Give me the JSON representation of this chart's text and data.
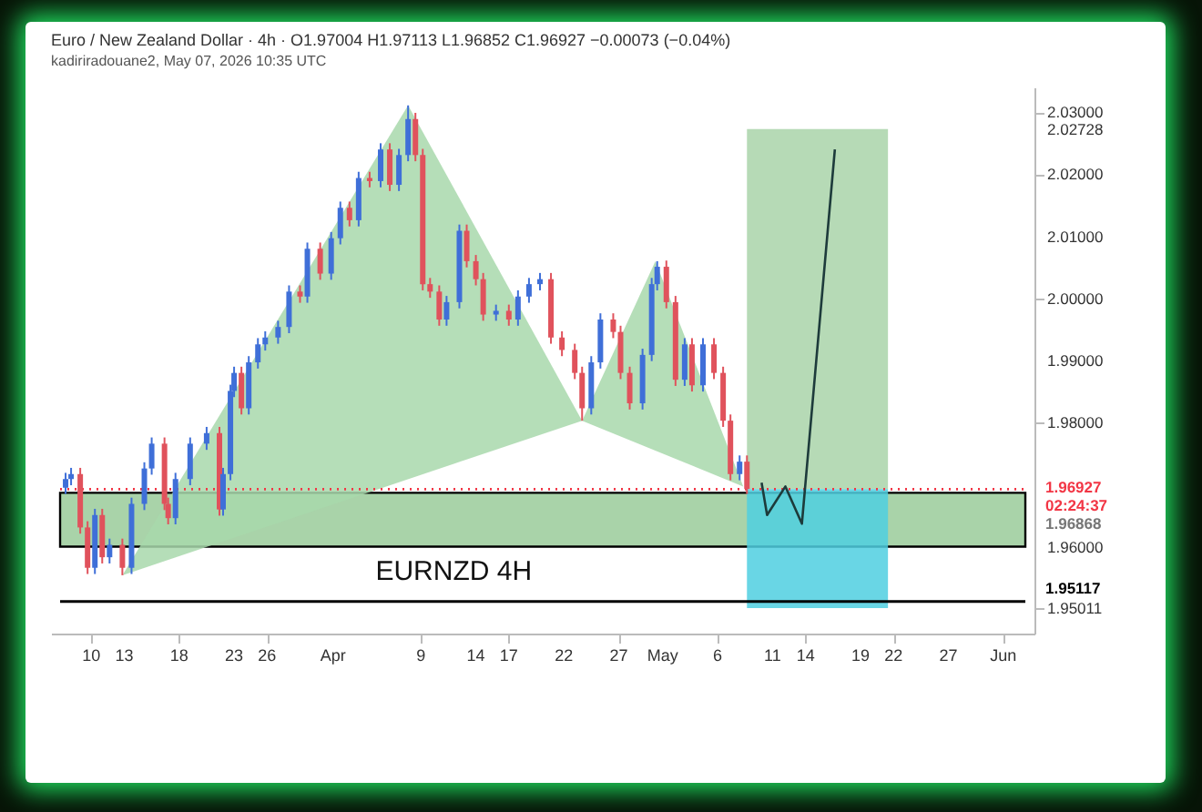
{
  "chart_data": {
    "type": "candlestick",
    "title": "Euro / New Zealand Dollar · 4h · O1.97004 H1.97113 L1.96852 C1.96927 −0.00073 (−0.04%)",
    "subtitle": "kadiriradouane2, May 07, 2026 10:35 UTC",
    "xlim": [
      "2026-03-07T04:00",
      "2026-06-03"
    ],
    "ylim": [
      1.946,
      2.034
    ],
    "xticks": [
      {
        "value": "2026-03-10",
        "label": "10"
      },
      {
        "value": "2026-03-13",
        "label": "13"
      },
      {
        "value": "2026-03-18",
        "label": "18"
      },
      {
        "value": "2026-03-23",
        "label": "23"
      },
      {
        "value": "2026-03-26",
        "label": "26"
      },
      {
        "value": "2026-04-01",
        "label": "Apr"
      },
      {
        "value": "2026-04-09",
        "label": "9"
      },
      {
        "value": "2026-04-14",
        "label": "14"
      },
      {
        "value": "2026-04-17",
        "label": "17"
      },
      {
        "value": "2026-04-22",
        "label": "22"
      },
      {
        "value": "2026-04-27",
        "label": "27"
      },
      {
        "value": "2026-05-01",
        "label": "May"
      },
      {
        "value": "2026-05-06",
        "label": "6"
      },
      {
        "value": "2026-05-11",
        "label": "11"
      },
      {
        "value": "2026-05-14",
        "label": "14"
      },
      {
        "value": "2026-05-19",
        "label": "19"
      },
      {
        "value": "2026-05-22",
        "label": "22"
      },
      {
        "value": "2026-05-27",
        "label": "27"
      },
      {
        "value": "2026-06-01",
        "label": "Jun"
      }
    ],
    "yticks": [
      {
        "value": 1.95011,
        "label": "1.95011"
      },
      {
        "value": 1.96,
        "label": "1.96000"
      },
      {
        "value": 1.98,
        "label": "1.98000"
      },
      {
        "value": 1.99,
        "label": "1.99000"
      },
      {
        "value": 2.0,
        "label": "2.00000"
      },
      {
        "value": 2.01,
        "label": "2.01000"
      },
      {
        "value": 2.02,
        "label": "2.02000"
      },
      {
        "value": 2.02728,
        "label": "2.02728"
      },
      {
        "value": 2.03,
        "label": "2.03000"
      }
    ],
    "x": [
      "2026-03-07T16:00",
      "2026-03-08T04:00",
      "2026-03-09T00:00",
      "2026-03-09T16:00",
      "2026-03-10T08:00",
      "2026-03-11T00:00",
      "2026-03-11T16:00",
      "2026-03-12T20:00",
      "2026-03-13T16:00",
      "2026-03-14T20:00",
      "2026-03-15T12:00",
      "2026-03-16T16:00",
      "2026-03-17T00:00",
      "2026-03-17T16:00",
      "2026-03-19T00:00",
      "2026-03-20T12:00",
      "2026-03-21T16:00",
      "2026-03-22T00:00",
      "2026-03-22T16:00",
      "2026-03-23T00:00",
      "2026-03-23T16:00",
      "2026-03-24T08:00",
      "2026-03-25T04:00",
      "2026-03-25T20:00",
      "2026-03-27T00:00",
      "2026-03-28T00:00",
      "2026-03-29T00:00",
      "2026-03-29T16:00",
      "2026-03-30T20:00",
      "2026-03-31T20:00",
      "2026-04-01T16:00",
      "2026-04-02T12:00",
      "2026-04-03T08:00",
      "2026-04-04T08:00",
      "2026-04-05T08:00",
      "2026-04-06T04:00",
      "2026-04-07T00:00",
      "2026-04-07T20:00",
      "2026-04-08T12:00",
      "2026-04-09T04:00",
      "2026-04-09T20:00",
      "2026-04-10T16:00",
      "2026-04-11T08:00",
      "2026-04-12T12:00",
      "2026-04-13T04:00",
      "2026-04-14T00:00",
      "2026-04-14T16:00",
      "2026-04-15T20:00",
      "2026-04-17T00:00",
      "2026-04-17T20:00",
      "2026-04-18T20:00",
      "2026-04-19T20:00",
      "2026-04-20T20:00",
      "2026-04-21T20:00",
      "2026-04-23T00:00",
      "2026-04-23T16:00",
      "2026-04-24T12:00",
      "2026-04-25T08:00",
      "2026-04-26T12:00",
      "2026-04-27T04:00",
      "2026-04-28T00:00",
      "2026-04-29T04:00",
      "2026-04-30T00:00",
      "2026-04-30T12:00",
      "2026-05-01T08:00",
      "2026-05-02T04:00",
      "2026-05-03T00:00",
      "2026-05-03T16:00",
      "2026-05-04T16:00",
      "2026-05-05T16:00",
      "2026-05-06T12:00",
      "2026-05-07T04:00",
      "2026-05-08T00:00",
      "2026-05-08T16:00"
    ],
    "ohlc": [
      [
        1.9695,
        1.9719,
        1.9685,
        1.9709
      ],
      [
        1.9709,
        1.9727,
        1.9699,
        1.9717
      ],
      [
        1.9717,
        1.9727,
        1.9621,
        1.9631
      ],
      [
        1.9631,
        1.9641,
        1.9556,
        1.9566
      ],
      [
        1.9566,
        1.9661,
        1.9556,
        1.9651
      ],
      [
        1.9651,
        1.9661,
        1.9573,
        1.9583
      ],
      [
        1.9583,
        1.9613,
        1.9573,
        1.9603
      ],
      [
        1.9603,
        1.9613,
        1.9554,
        1.9566
      ],
      [
        1.9566,
        1.9679,
        1.9556,
        1.9669
      ],
      [
        1.9669,
        1.9736,
        1.9659,
        1.9726
      ],
      [
        1.9726,
        1.9776,
        1.9716,
        1.9766
      ],
      [
        1.9766,
        1.9776,
        1.9659,
        1.9669
      ],
      [
        1.9669,
        1.9679,
        1.9636,
        1.9646
      ],
      [
        1.9646,
        1.9719,
        1.9636,
        1.9709
      ],
      [
        1.9709,
        1.9776,
        1.9699,
        1.9766
      ],
      [
        1.9766,
        1.9793,
        1.9756,
        1.9783
      ],
      [
        1.9783,
        1.9793,
        1.965,
        1.966
      ],
      [
        1.966,
        1.9727,
        1.965,
        1.9717
      ],
      [
        1.9717,
        1.9861,
        1.9707,
        1.9851
      ],
      [
        1.9851,
        1.989,
        1.9841,
        1.988
      ],
      [
        1.988,
        1.989,
        1.9813,
        1.9823
      ],
      [
        1.9823,
        1.9907,
        1.9813,
        1.9897
      ],
      [
        1.9897,
        1.9936,
        1.9887,
        1.9926
      ],
      [
        1.9926,
        1.9947,
        1.9916,
        1.9937
      ],
      [
        1.9937,
        1.9964,
        1.9927,
        1.9954
      ],
      [
        1.9954,
        2.0021,
        1.9944,
        2.0011
      ],
      [
        2.0011,
        2.0021,
        1.9993,
        2.0003
      ],
      [
        2.0003,
        2.009,
        1.9993,
        2.008
      ],
      [
        2.008,
        2.009,
        2.003,
        2.004
      ],
      [
        2.004,
        2.0107,
        2.003,
        2.0097
      ],
      [
        2.0097,
        2.0156,
        2.0087,
        2.0146
      ],
      [
        2.0146,
        2.0156,
        2.0116,
        2.0126
      ],
      [
        2.0126,
        2.0204,
        2.0116,
        2.0194
      ],
      [
        2.0194,
        2.0204,
        2.0179,
        2.0189
      ],
      [
        2.0189,
        2.025,
        2.0179,
        2.024
      ],
      [
        2.024,
        2.025,
        2.0173,
        2.0183
      ],
      [
        2.0183,
        2.0241,
        2.0173,
        2.0231
      ],
      [
        2.0231,
        2.0311,
        2.0221,
        2.0289
      ],
      [
        2.0289,
        2.0299,
        2.0221,
        2.0231
      ],
      [
        2.0231,
        2.0241,
        2.0013,
        2.0023
      ],
      [
        2.0023,
        2.0033,
        2.0001,
        2.0011
      ],
      [
        2.0011,
        2.0021,
        1.9956,
        1.9966
      ],
      [
        1.9966,
        2.0004,
        1.9956,
        1.9994
      ],
      [
        1.9994,
        2.0119,
        1.9984,
        2.0109
      ],
      [
        2.0109,
        2.0119,
        2.005,
        2.006
      ],
      [
        2.006,
        2.007,
        2.0021,
        2.0031
      ],
      [
        2.0031,
        2.0041,
        1.9964,
        1.9974
      ],
      [
        1.9974,
        1.999,
        1.9964,
        1.998
      ],
      [
        1.998,
        1.999,
        1.9956,
        1.9966
      ],
      [
        1.9966,
        2.0013,
        1.9956,
        2.0003
      ],
      [
        2.0003,
        2.0033,
        1.9993,
        2.0023
      ],
      [
        2.0023,
        2.0041,
        2.0013,
        2.0031
      ],
      [
        2.0031,
        2.0041,
        1.9927,
        1.9937
      ],
      [
        1.9937,
        1.9947,
        1.9907,
        1.9917
      ],
      [
        1.9917,
        1.9927,
        1.987,
        1.988
      ],
      [
        1.988,
        1.989,
        1.9803,
        1.9823
      ],
      [
        1.9823,
        1.9907,
        1.9813,
        1.9897
      ],
      [
        1.9897,
        1.9976,
        1.9887,
        1.9966
      ],
      [
        1.9966,
        1.9976,
        1.9936,
        1.9946
      ],
      [
        1.9946,
        1.9956,
        1.987,
        1.988
      ],
      [
        1.988,
        1.989,
        1.9821,
        1.9831
      ],
      [
        1.9831,
        1.9919,
        1.9821,
        1.9909
      ],
      [
        1.9909,
        2.0033,
        1.9899,
        2.0023
      ],
      [
        2.0023,
        2.006,
        2.0013,
        2.0051
      ],
      [
        2.0051,
        2.0061,
        1.9984,
        1.9994
      ],
      [
        1.9994,
        2.0004,
        1.9859,
        1.9869
      ],
      [
        1.9869,
        1.9936,
        1.9859,
        1.9926
      ],
      [
        1.9926,
        1.9936,
        1.985,
        1.986
      ],
      [
        1.986,
        1.9936,
        1.985,
        1.9926
      ],
      [
        1.9926,
        1.9936,
        1.987,
        1.988
      ],
      [
        1.988,
        1.989,
        1.9793,
        1.9803
      ],
      [
        1.9803,
        1.9813,
        1.9707,
        1.9717
      ],
      [
        1.9717,
        1.9747,
        1.9707,
        1.9737
      ],
      [
        1.9737,
        1.9747,
        1.9685,
        1.9693
      ]
    ],
    "colors": [
      "#3f6fd8",
      "#3f6fd8",
      "#e0525c",
      "#e0525c",
      "#3f6fd8",
      "#e0525c",
      "#3f6fd8",
      "#e0525c",
      "#3f6fd8",
      "#3f6fd8",
      "#3f6fd8",
      "#e0525c",
      "#e0525c",
      "#3f6fd8",
      "#3f6fd8",
      "#3f6fd8",
      "#e0525c",
      "#3f6fd8",
      "#3f6fd8",
      "#3f6fd8",
      "#e0525c",
      "#3f6fd8",
      "#3f6fd8",
      "#3f6fd8",
      "#3f6fd8",
      "#3f6fd8",
      "#e0525c",
      "#3f6fd8",
      "#e0525c",
      "#3f6fd8",
      "#3f6fd8",
      "#e0525c",
      "#3f6fd8",
      "#e0525c",
      "#3f6fd8",
      "#e0525c",
      "#3f6fd8",
      "#3f6fd8",
      "#e0525c",
      "#e0525c",
      "#e0525c",
      "#e0525c",
      "#3f6fd8",
      "#3f6fd8",
      "#e0525c",
      "#e0525c",
      "#e0525c",
      "#3f6fd8",
      "#e0525c",
      "#3f6fd8",
      "#3f6fd8",
      "#3f6fd8",
      "#e0525c",
      "#e0525c",
      "#e0525c",
      "#e0525c",
      "#3f6fd8",
      "#3f6fd8",
      "#e0525c",
      "#e0525c",
      "#e0525c",
      "#3f6fd8",
      "#3f6fd8",
      "#3f6fd8",
      "#e0525c",
      "#e0525c",
      "#3f6fd8",
      "#e0525c",
      "#3f6fd8",
      "#e0525c",
      "#e0525c",
      "#e0525c",
      "#3f6fd8",
      "#e0525c"
    ],
    "series": [
      {
        "type": "area",
        "color": "#a8d8ab",
        "x": [
          "2026-03-12T20:00",
          "2026-04-07T20:00",
          "2026-04-23T16:00"
        ],
        "values": [
          1.9554,
          2.0311,
          1.9803
        ]
      },
      {
        "type": "area",
        "color": "#a8d8ab",
        "x": [
          "2026-04-23T16:00",
          "2026-04-30T08:00",
          "2026-05-08T08:00"
        ],
        "values": [
          1.9803,
          2.006,
          1.9697
        ]
      },
      {
        "type": "area",
        "color": "#a9d3a9",
        "x": [
          "2026-05-08T16:00",
          "2026-05-21T12:00",
          "2026-05-21T12:00",
          "2026-05-08T16:00"
        ],
        "values": [
          2.02728,
          2.02728,
          1.96927,
          1.96927
        ]
      },
      {
        "type": "area",
        "color": "#4fcfe0",
        "x": [
          "2026-05-08T16:00",
          "2026-05-21T12:00",
          "2026-05-21T12:00",
          "2026-05-08T16:00"
        ],
        "values": [
          1.96927,
          1.96927,
          1.95011,
          1.95011
        ]
      },
      {
        "type": "line",
        "color": "#1d3b3b",
        "x": [
          "2026-05-10T00:00",
          "2026-05-10T12:00",
          "2026-05-12T04:00",
          "2026-05-13T16:00",
          "2026-05-16T16:00"
        ],
        "values": [
          1.9703,
          1.9651,
          1.9697,
          1.9637,
          2.024
        ]
      }
    ],
    "bands": [
      {
        "axis": "y",
        "from": 1.96,
        "to": 1.96868,
        "label": "1.96868",
        "color": "#a9d3a9"
      }
    ],
    "ref_lines": [
      {
        "axis": "y",
        "value": 1.95117,
        "label": "1.95117",
        "color": "#000000"
      },
      {
        "axis": "y",
        "value": 1.96927,
        "label": "1.96927\n02:24:37",
        "color": "#f23645",
        "line_style": "dotted"
      }
    ],
    "annotations": [
      "EURNZD 4H"
    ],
    "grid": false,
    "marker": "none"
  }
}
